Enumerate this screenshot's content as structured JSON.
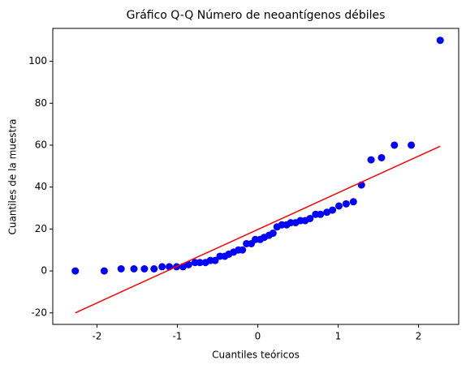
{
  "chart_data": {
    "type": "scatter",
    "title": "Gráfico Q-Q Número de neoantígenos débiles",
    "x_label": "Cuantiles teóricos",
    "y_label": "Cuantiles de la muestra",
    "xlim": [
      -2.55,
      2.5
    ],
    "ylim": [
      -25.5,
      115.7
    ],
    "xticks": [
      -2,
      -1,
      0,
      1,
      2
    ],
    "yticks": [
      -20,
      0,
      20,
      40,
      60,
      80,
      100
    ],
    "grid": false,
    "series": [
      {
        "type": "scatter",
        "color": "#0000ff",
        "x": [
          -2.27,
          -1.91,
          -1.7,
          -1.54,
          -1.41,
          -1.29,
          -1.19,
          -1.1,
          -1.01,
          -0.93,
          -0.86,
          -0.78,
          -0.72,
          -0.65,
          -0.59,
          -0.53,
          -0.47,
          -0.41,
          -0.36,
          -0.3,
          -0.24,
          -0.19,
          -0.14,
          -0.08,
          -0.03,
          0.03,
          0.08,
          0.14,
          0.19,
          0.24,
          0.3,
          0.36,
          0.41,
          0.47,
          0.53,
          0.59,
          0.65,
          0.72,
          0.78,
          0.86,
          0.93,
          1.01,
          1.1,
          1.19,
          1.29,
          1.41,
          1.54,
          1.7,
          1.91,
          2.27
        ],
        "values": [
          0,
          0,
          1,
          1,
          1,
          1,
          2,
          2,
          2,
          2,
          3,
          4,
          4,
          4,
          5,
          5,
          7,
          7,
          8,
          9,
          10,
          10,
          13,
          13,
          15,
          15,
          16,
          17,
          18,
          21,
          22,
          22,
          23,
          23,
          24,
          24,
          25,
          27,
          27,
          28,
          29,
          31,
          32,
          33,
          41,
          53,
          54,
          60,
          60,
          110
        ]
      },
      {
        "type": "line",
        "color": "#ff0000",
        "x": [
          -2.27,
          2.27
        ],
        "values": [
          -20,
          59.5
        ]
      }
    ]
  }
}
